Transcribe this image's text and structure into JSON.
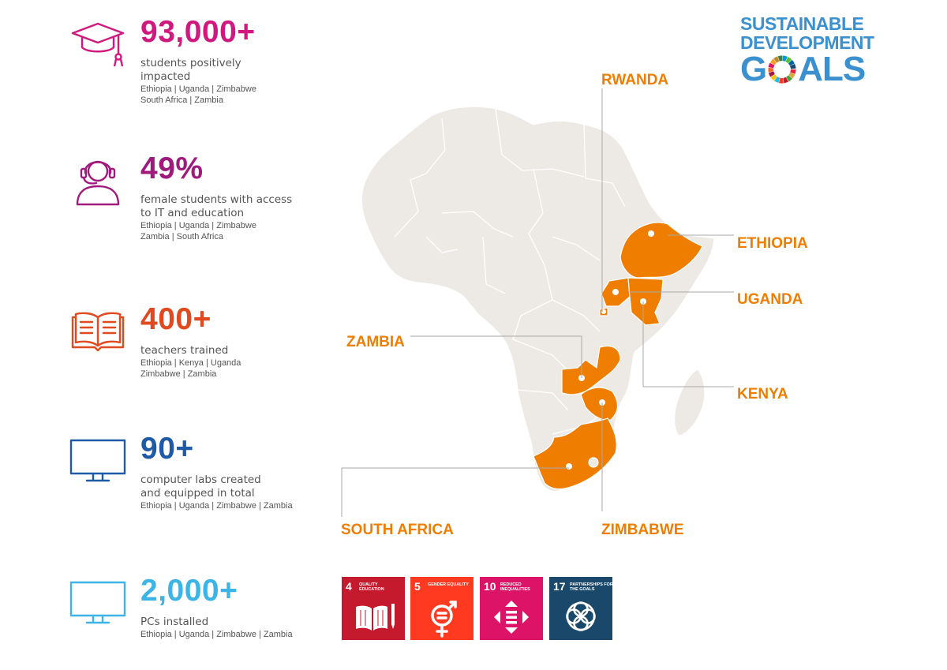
{
  "stats": [
    {
      "value": "93,000+",
      "description": "students positively impacted",
      "countries": [
        "Ethiopia | Uganda | Zimbabwe",
        "South Africa | Zambia"
      ],
      "color": "#d0197e",
      "icon": "graduation-cap-icon"
    },
    {
      "value": "49%",
      "description": "female students with access to IT and education",
      "countries": [
        "Ethiopia | Uganda | Zimbabwe",
        "Zambia | South Africa"
      ],
      "color": "#a01a7e",
      "icon": "female-student-headset-icon"
    },
    {
      "value": "400+",
      "description": "teachers trained",
      "countries": [
        "Ethiopia | Kenya | Uganda",
        "Zimbabwe | Zambia"
      ],
      "color": "#e04a1e",
      "icon": "open-book-icon"
    },
    {
      "value": "90+",
      "description": "computer labs created and equipped in total",
      "countries": [
        "Ethiopia | Uganda | Zimbabwe | Zambia"
      ],
      "color": "#1f5aa6",
      "icon": "monitor-icon"
    },
    {
      "value": "2,000+",
      "description": "PCs installed",
      "countries": [
        "Ethiopia | Uganda | Zimbabwe | Zambia"
      ],
      "color": "#3cb4e5",
      "icon": "monitor-icon"
    }
  ],
  "map": {
    "highlight_color": "#ef7d00",
    "land_color": "#ede9e4",
    "countries": [
      "RWANDA",
      "ETHIOPIA",
      "UGANDA",
      "ZAMBIA",
      "KENYA",
      "SOUTH AFRICA",
      "ZIMBABWE"
    ]
  },
  "sdg_logo": {
    "line1": "SUSTAINABLE",
    "line2": "DEVELOPMENT",
    "line3_start": "G",
    "line3_end": "ALS"
  },
  "sdg_goals": [
    {
      "number": "4",
      "name": "Quality Education",
      "color": "#c5192d",
      "icon": "book-pencil-icon"
    },
    {
      "number": "5",
      "name": "Gender Equality",
      "color": "#ff3a21",
      "icon": "gender-equality-icon"
    },
    {
      "number": "10",
      "name": "Reduced Inequalities",
      "color": "#dd1367",
      "icon": "reduced-inequalities-icon"
    },
    {
      "number": "17",
      "name": "Partnerships for the Goals",
      "color": "#19486a",
      "icon": "partnership-rings-icon"
    }
  ]
}
